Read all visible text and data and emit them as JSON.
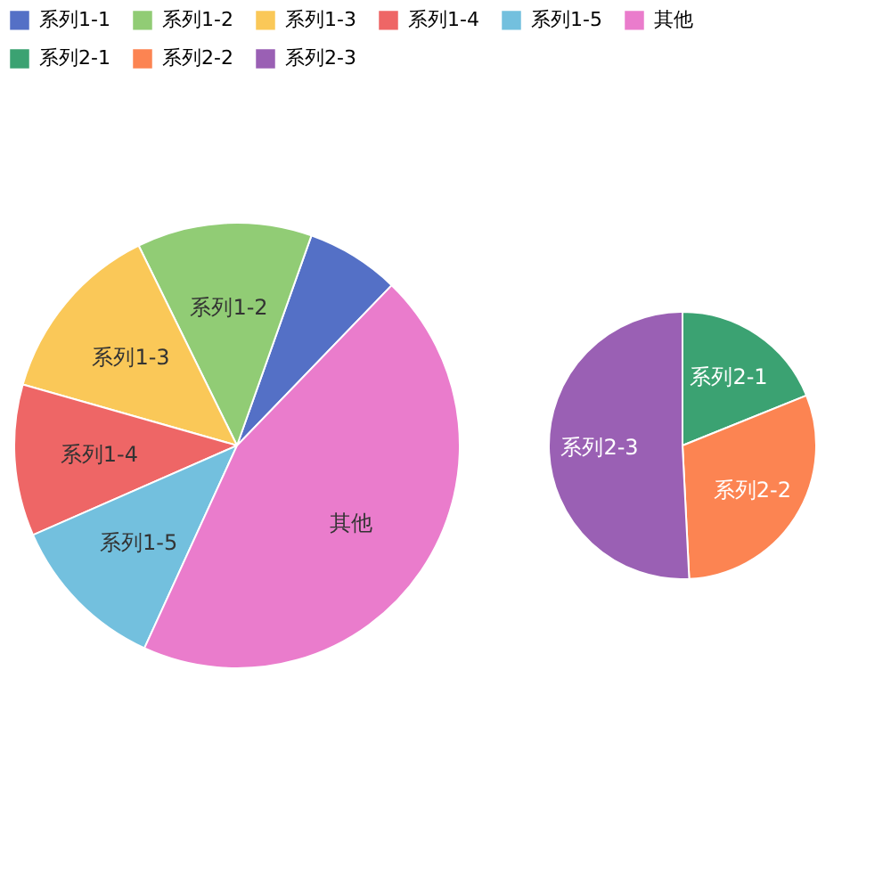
{
  "chart_data": [
    {
      "type": "pie",
      "legend": "top",
      "categories": [
        "系列1-1",
        "系列1-2",
        "系列1-3",
        "系列1-4",
        "系列1-5",
        "其他"
      ],
      "values": [
        6.8,
        12.7,
        13.3,
        11,
        11.6,
        44.6
      ],
      "colors": [
        "#5470c6",
        "#91cc75",
        "#fac858",
        "#ee6666",
        "#73c0de",
        "#ea7ccc"
      ]
    },
    {
      "type": "pie",
      "legend": "top",
      "categories": [
        "系列2-1",
        "系列2-2",
        "系列2-3"
      ],
      "values": [
        18.9,
        30.3,
        50.8
      ],
      "colors": [
        "#3ba272",
        "#fc8452",
        "#9a60b4"
      ]
    }
  ]
}
